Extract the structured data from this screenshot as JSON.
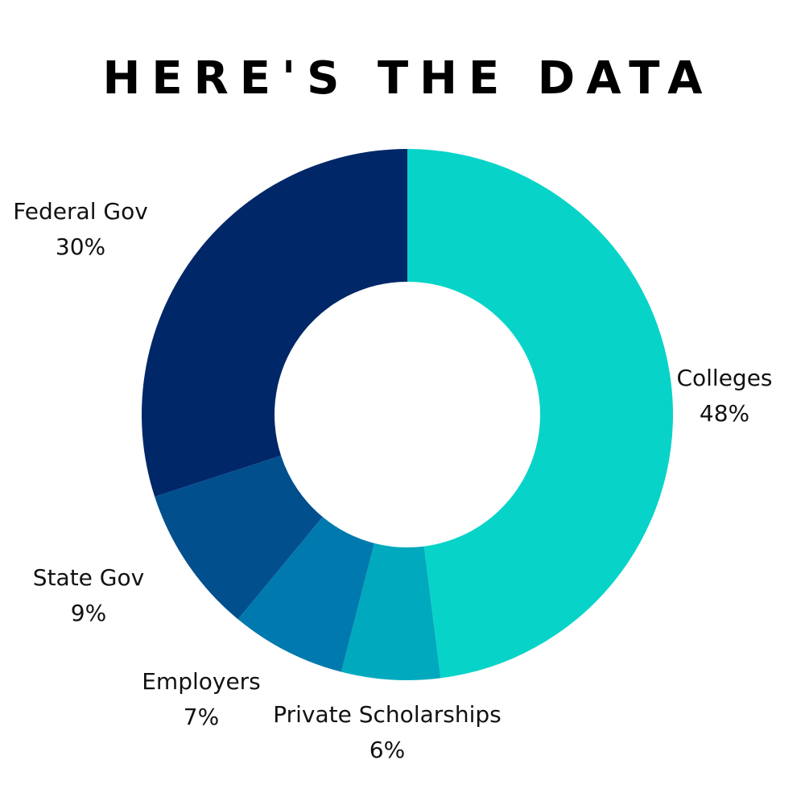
{
  "title": "HERE'S THE DATA",
  "chart_data": {
    "type": "pie",
    "donut": true,
    "title": "HERE'S THE DATA",
    "slices": [
      {
        "label": "Colleges",
        "value": 48,
        "value_label": "48%",
        "color": "#08d3c8"
      },
      {
        "label": "Private Scholarships",
        "value": 6,
        "value_label": "6%",
        "color": "#00a9bd"
      },
      {
        "label": "Employers",
        "value": 7,
        "value_label": "7%",
        "color": "#007aae"
      },
      {
        "label": "State Gov",
        "value": 9,
        "value_label": "9%",
        "color": "#024f8e"
      },
      {
        "label": "Federal Gov",
        "value": 30,
        "value_label": "30%",
        "color": "#002768"
      }
    ],
    "legend": "none"
  }
}
